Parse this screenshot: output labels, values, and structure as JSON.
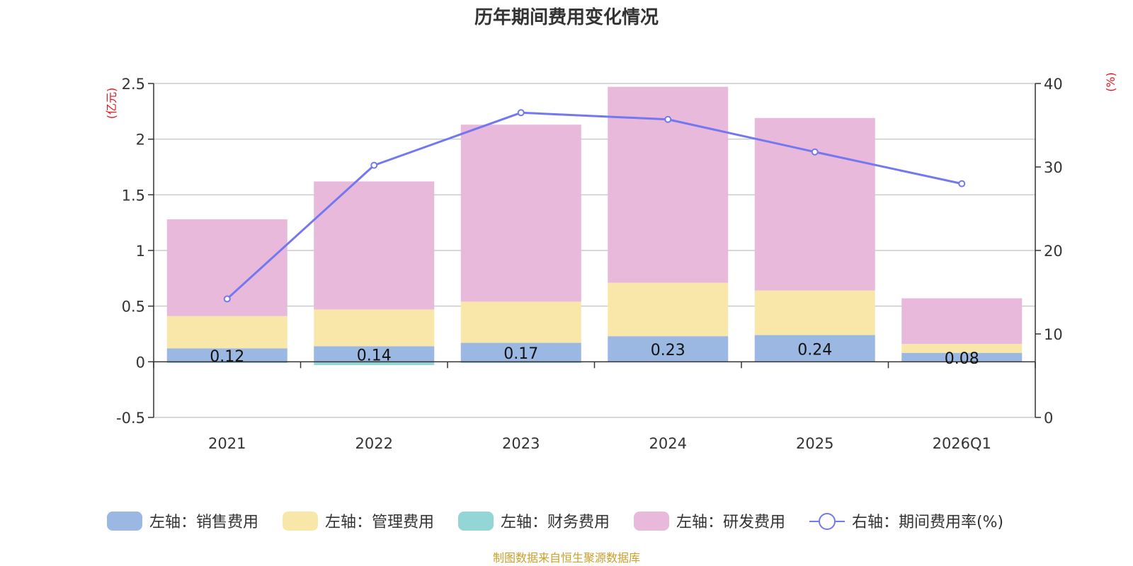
{
  "chart_data": {
    "type": "bar",
    "title": "历年期间费用变化情况",
    "categories": [
      "2021",
      "2022",
      "2023",
      "2024",
      "2025",
      "2026Q1"
    ],
    "left_axis": {
      "unit": "(亿元)",
      "ylim": [
        -0.5,
        2.5
      ],
      "ticks": [
        "-0.5",
        "0",
        "0.5",
        "1",
        "1.5",
        "2",
        "2.5"
      ],
      "tick_values": [
        -0.5,
        0,
        0.5,
        1,
        1.5,
        2,
        2.5
      ]
    },
    "right_axis": {
      "unit": "(%)",
      "ylim": [
        0,
        40
      ],
      "ticks": [
        "0",
        "10",
        "20",
        "30",
        "40"
      ],
      "tick_values": [
        0,
        10,
        20,
        30,
        40
      ]
    },
    "series": [
      {
        "name": "左轴：销售费用",
        "kind": "bar",
        "color": "#9bb8e2",
        "values": [
          0.12,
          0.14,
          0.17,
          0.23,
          0.24,
          0.08
        ],
        "labels": [
          "0.12",
          "0.14",
          "0.17",
          "0.23",
          "0.24",
          "0.08"
        ]
      },
      {
        "name": "左轴：管理费用",
        "kind": "bar",
        "color": "#f8e7a8",
        "values": [
          0.29,
          0.33,
          0.37,
          0.48,
          0.4,
          0.08
        ]
      },
      {
        "name": "左轴：财务费用",
        "kind": "bar",
        "color": "#94d5d5",
        "values": [
          -0.01,
          -0.03,
          -0.01,
          0.0,
          0.0,
          0.0
        ]
      },
      {
        "name": "左轴：研发费用",
        "kind": "bar",
        "color": "#e8b9da",
        "values": [
          0.87,
          1.15,
          1.59,
          1.76,
          1.55,
          0.41
        ]
      },
      {
        "name": "右轴：期间费用率(%)",
        "kind": "line",
        "color": "#7378f0",
        "values": [
          14.2,
          30.2,
          36.5,
          35.7,
          31.8,
          28.0
        ]
      }
    ],
    "source_note": "制图数据来自恒生聚源数据库"
  }
}
